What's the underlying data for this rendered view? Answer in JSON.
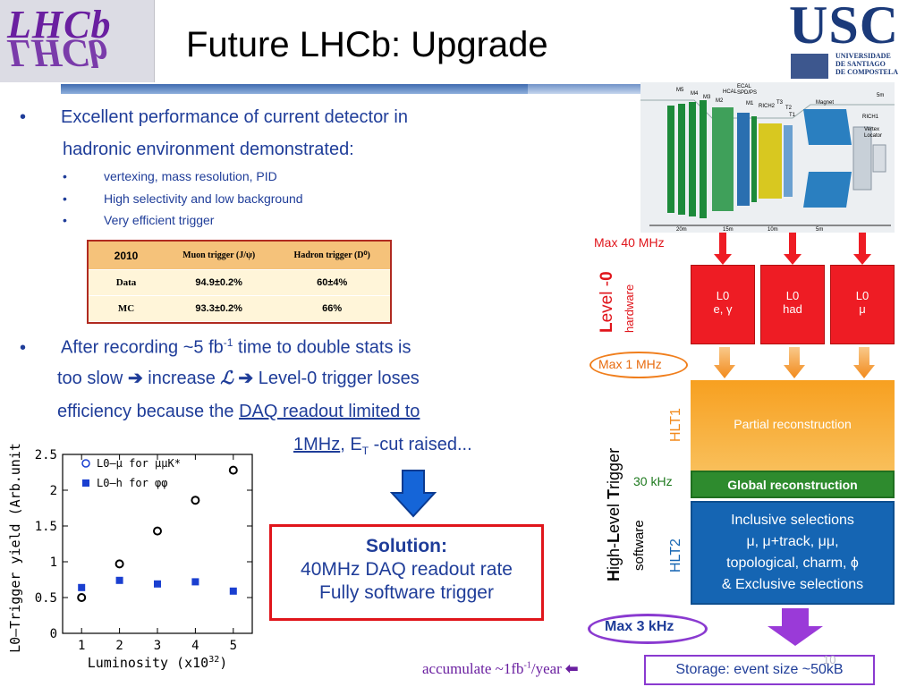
{
  "header": {
    "title": "Future LHCb: Upgrade",
    "left_logo": "LHCb",
    "right_logo": "USC",
    "right_logo_sub": [
      "UNIVERSIDADE",
      "DE SANTIAGO",
      "DE COMPOSTELA"
    ]
  },
  "bullets": {
    "b1_line1": "Excellent performance of current detector in",
    "b1_line2": "hadronic environment demonstrated:",
    "sub": [
      "vertexing, mass resolution, PID",
      "High selectivity and low background",
      "Very efficient trigger"
    ],
    "b2_line1": "After recording ~5 fb",
    "b2_sup": "-1",
    "b2_line1_end": " time to double stats is",
    "b2_line2a": "too slow ",
    "b2_line2b": " increase ",
    "b2_line2c": " Level-0 trigger loses",
    "b2_line3a": "efficiency because the ",
    "b2_line3_link": "DAQ readout limited to",
    "b2_line4_link": "1MHz",
    "b2_line4b": ", E",
    "b2_line4_sub": "T",
    "b2_line4c": " -cut raised..."
  },
  "table": {
    "headers": [
      "2010",
      "Muon trigger (J/ψ)",
      "Hadron trigger (D⁰)"
    ],
    "rows": [
      [
        "Data",
        "94.9±0.2%",
        "60±4%"
      ],
      [
        "MC",
        "93.3±0.2%",
        "66%"
      ]
    ]
  },
  "solution": {
    "title": "Solution:",
    "line1": "40MHz DAQ readout rate",
    "line2": "Fully software trigger"
  },
  "chart_data": {
    "type": "scatter",
    "xlabel": "Luminosity (x10",
    "xlabel_sup": "32",
    "xlabel_end": ")",
    "ylabel": "L0–Trigger yield (Arb.unit)",
    "xticks": [
      "1",
      "2",
      "3",
      "4",
      "5"
    ],
    "yticks": [
      "0",
      "0.5",
      "1",
      "1.5",
      "2",
      "2.5"
    ],
    "xlim": [
      0.5,
      5.5
    ],
    "ylim": [
      0,
      2.5
    ],
    "series": [
      {
        "name": "L0–μ for μμK*",
        "marker": "open-circle",
        "x": [
          1,
          2,
          3,
          4,
          5
        ],
        "y": [
          0.5,
          0.97,
          1.43,
          1.86,
          2.28
        ]
      },
      {
        "name": "L0–h for φφ",
        "marker": "filled-square",
        "x": [
          1,
          2,
          3,
          4,
          5
        ],
        "y": [
          0.64,
          0.74,
          0.69,
          0.72,
          0.59
        ]
      }
    ]
  },
  "diagram": {
    "max40": "Max 40 MHz",
    "level0_a": "L",
    "level0_b": "evel -",
    "level0_c": "0",
    "hardware": "hardware",
    "l0_boxes": [
      {
        "l1": "L0",
        "l2": "e, γ"
      },
      {
        "l1": "L0",
        "l2": "had"
      },
      {
        "l1": "L0",
        "l2": "μ"
      }
    ],
    "max1": "Max 1 MHz",
    "hlt1": "HLT1",
    "partial": "Partial reconstruction",
    "khz30": "30 kHz",
    "global": "Global reconstruction",
    "hlt_a": "H",
    "hlt_b": "igh-",
    "hlt_c": "L",
    "hlt_d": "evel ",
    "hlt_e": "T",
    "hlt_f": "rigger",
    "software": "software",
    "hlt2": "HLT2",
    "inclusive1": "Inclusive selections",
    "inclusive2": "μ, μ+track, μμ,",
    "inclusive3": "topological, charm, ϕ",
    "exclusive": "&  Exclusive selections",
    "max3": "Max 3 kHz",
    "storage": "Storage: event size ~50kB",
    "accumulate_a": "accumulate ~1fb",
    "accumulate_sup": "-1",
    "accumulate_b": "/year",
    "page_num": "10"
  },
  "detector_labels": [
    "M5",
    "M4",
    "M3",
    "M2",
    "HCAL",
    "ECAL",
    "SPD/PS",
    "M1",
    "RICH2",
    "T3",
    "T2",
    "T1",
    "Magnet",
    "RICH1",
    "Vertex",
    "Locator",
    "5m",
    "20m",
    "15m",
    "10m",
    "5m"
  ],
  "colors": {
    "accent_blue": "#1f3d99",
    "red": "#ee1c24",
    "orange": "#f7a020",
    "green": "#2e8b2e",
    "purple": "#8a3ad0"
  }
}
